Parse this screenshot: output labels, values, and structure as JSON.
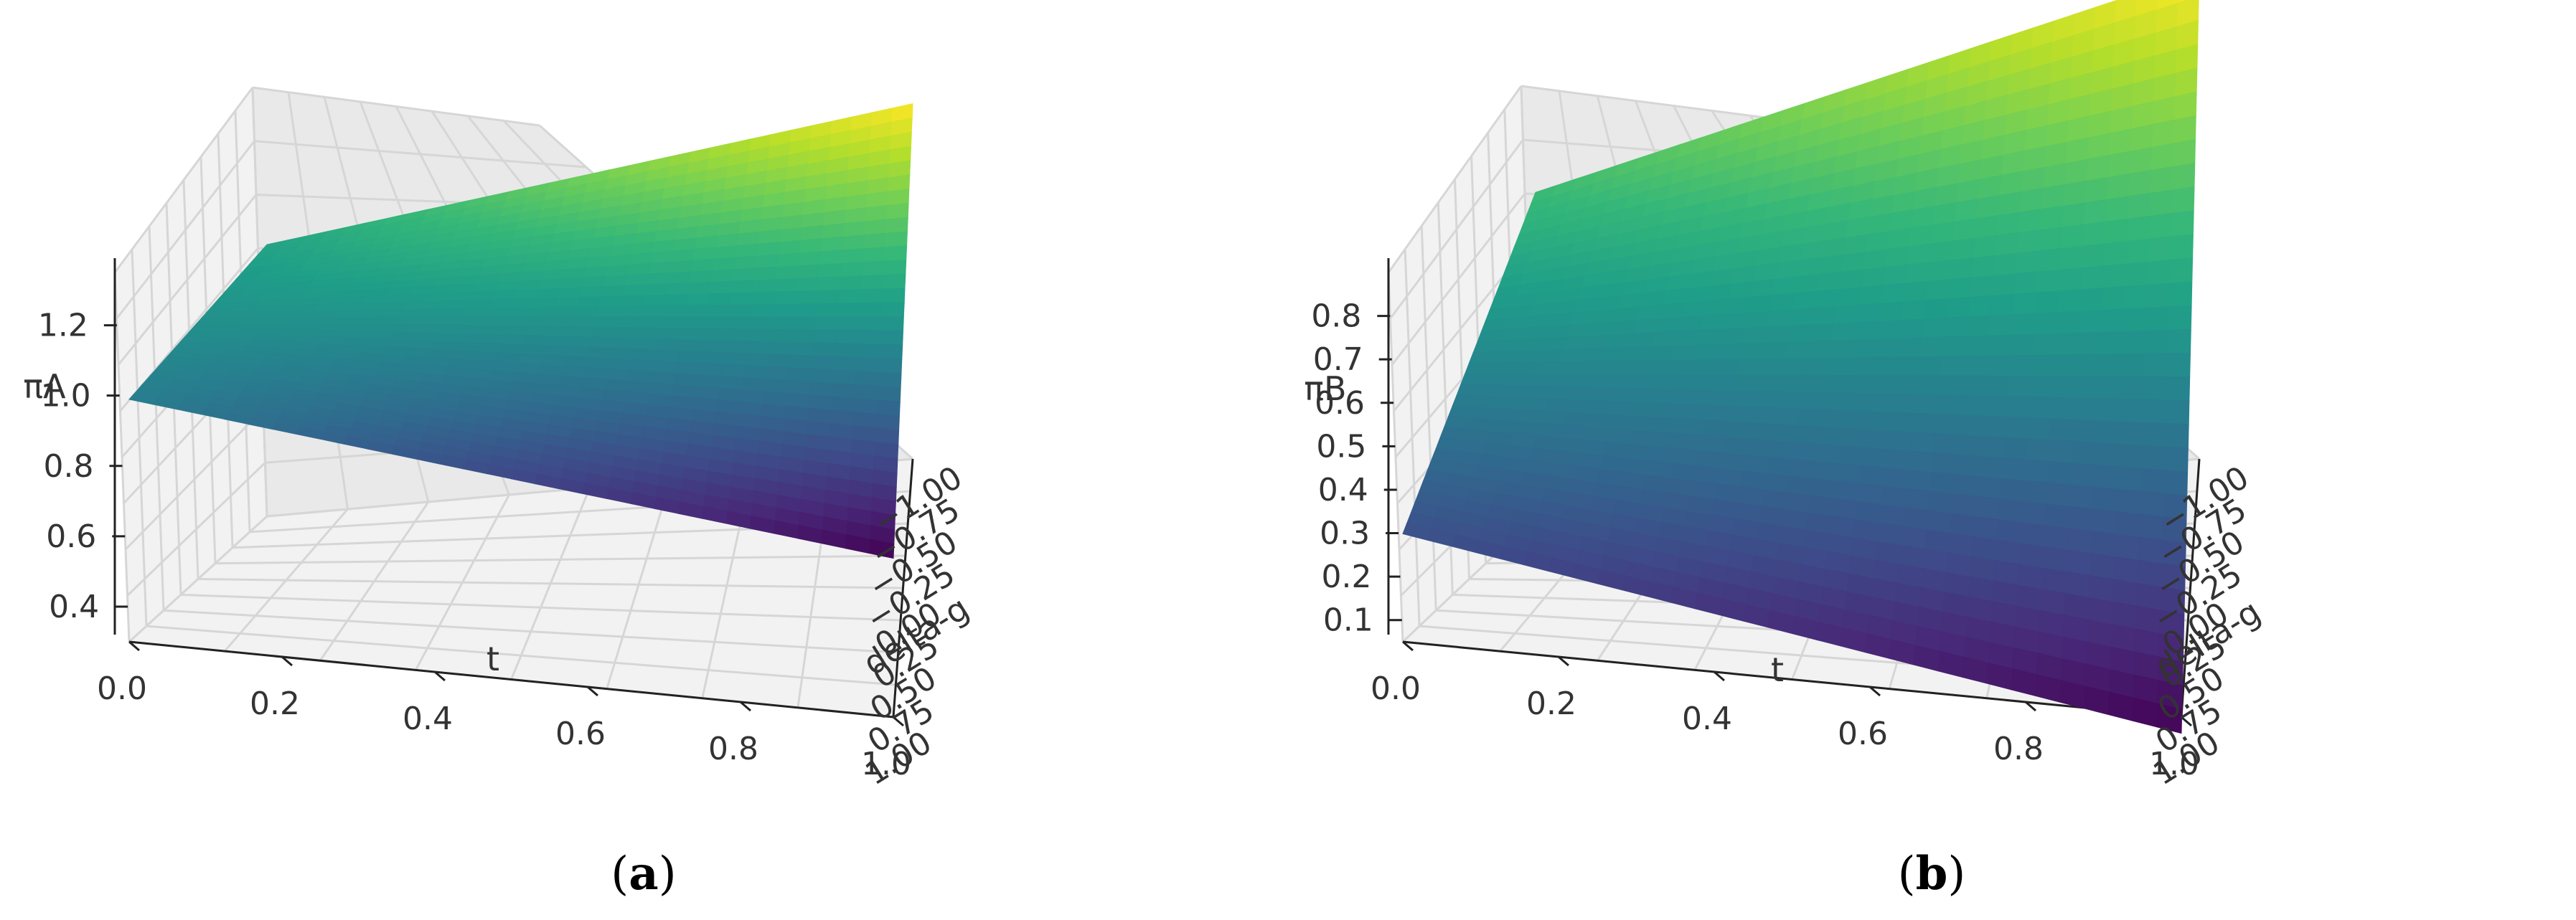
{
  "chart_data": [
    {
      "type": "surface3d",
      "panel_label": "(a)",
      "panel_letter": "a",
      "xlabel": "t",
      "ylabel": "delta-g",
      "zlabel": "πA",
      "x_ticks": [
        "0.0",
        "0.2",
        "0.4",
        "0.6",
        "0.8",
        "1.0"
      ],
      "y_ticks": [
        "1.00",
        "0.75",
        "0.50",
        "0.25",
        "0.00",
        "−0.25",
        "−0.50",
        "−0.75",
        "−1.00"
      ],
      "z_ticks": [
        "0.4",
        "0.6",
        "0.8",
        "1.0",
        "1.2"
      ],
      "xlim": [
        0,
        1
      ],
      "ylim": [
        -1,
        1
      ],
      "zlim": [
        0.3,
        1.35
      ],
      "corners": {
        "t0_gm1": 0.95,
        "t1_gm1": 1.15,
        "t0_g1": 0.88,
        "t1_g1": 0.68
      },
      "colormap": "viridis",
      "grid": true
    },
    {
      "type": "surface3d",
      "panel_label": "(b)",
      "panel_letter": "b",
      "xlabel": "t",
      "ylabel": "delta-g",
      "zlabel": "πB",
      "x_ticks": [
        "0.0",
        "0.2",
        "0.4",
        "0.6",
        "0.8",
        "1.0"
      ],
      "y_ticks": [
        "1.00",
        "0.75",
        "0.50",
        "0.25",
        "0.00",
        "−0.25",
        "−0.50",
        "−0.75",
        "−1.00"
      ],
      "z_ticks": [
        "0.1",
        "0.2",
        "0.3",
        "0.4",
        "0.5",
        "0.6",
        "0.7",
        "0.8"
      ],
      "xlim": [
        0,
        1
      ],
      "ylim": [
        -1,
        1
      ],
      "zlim": [
        0.05,
        0.9
      ],
      "corners": {
        "t0_gm1": 0.65,
        "t1_gm1": 0.95,
        "t0_g1": 0.25,
        "t1_g1": 0.02
      },
      "colormap": "viridis",
      "grid": true
    }
  ]
}
